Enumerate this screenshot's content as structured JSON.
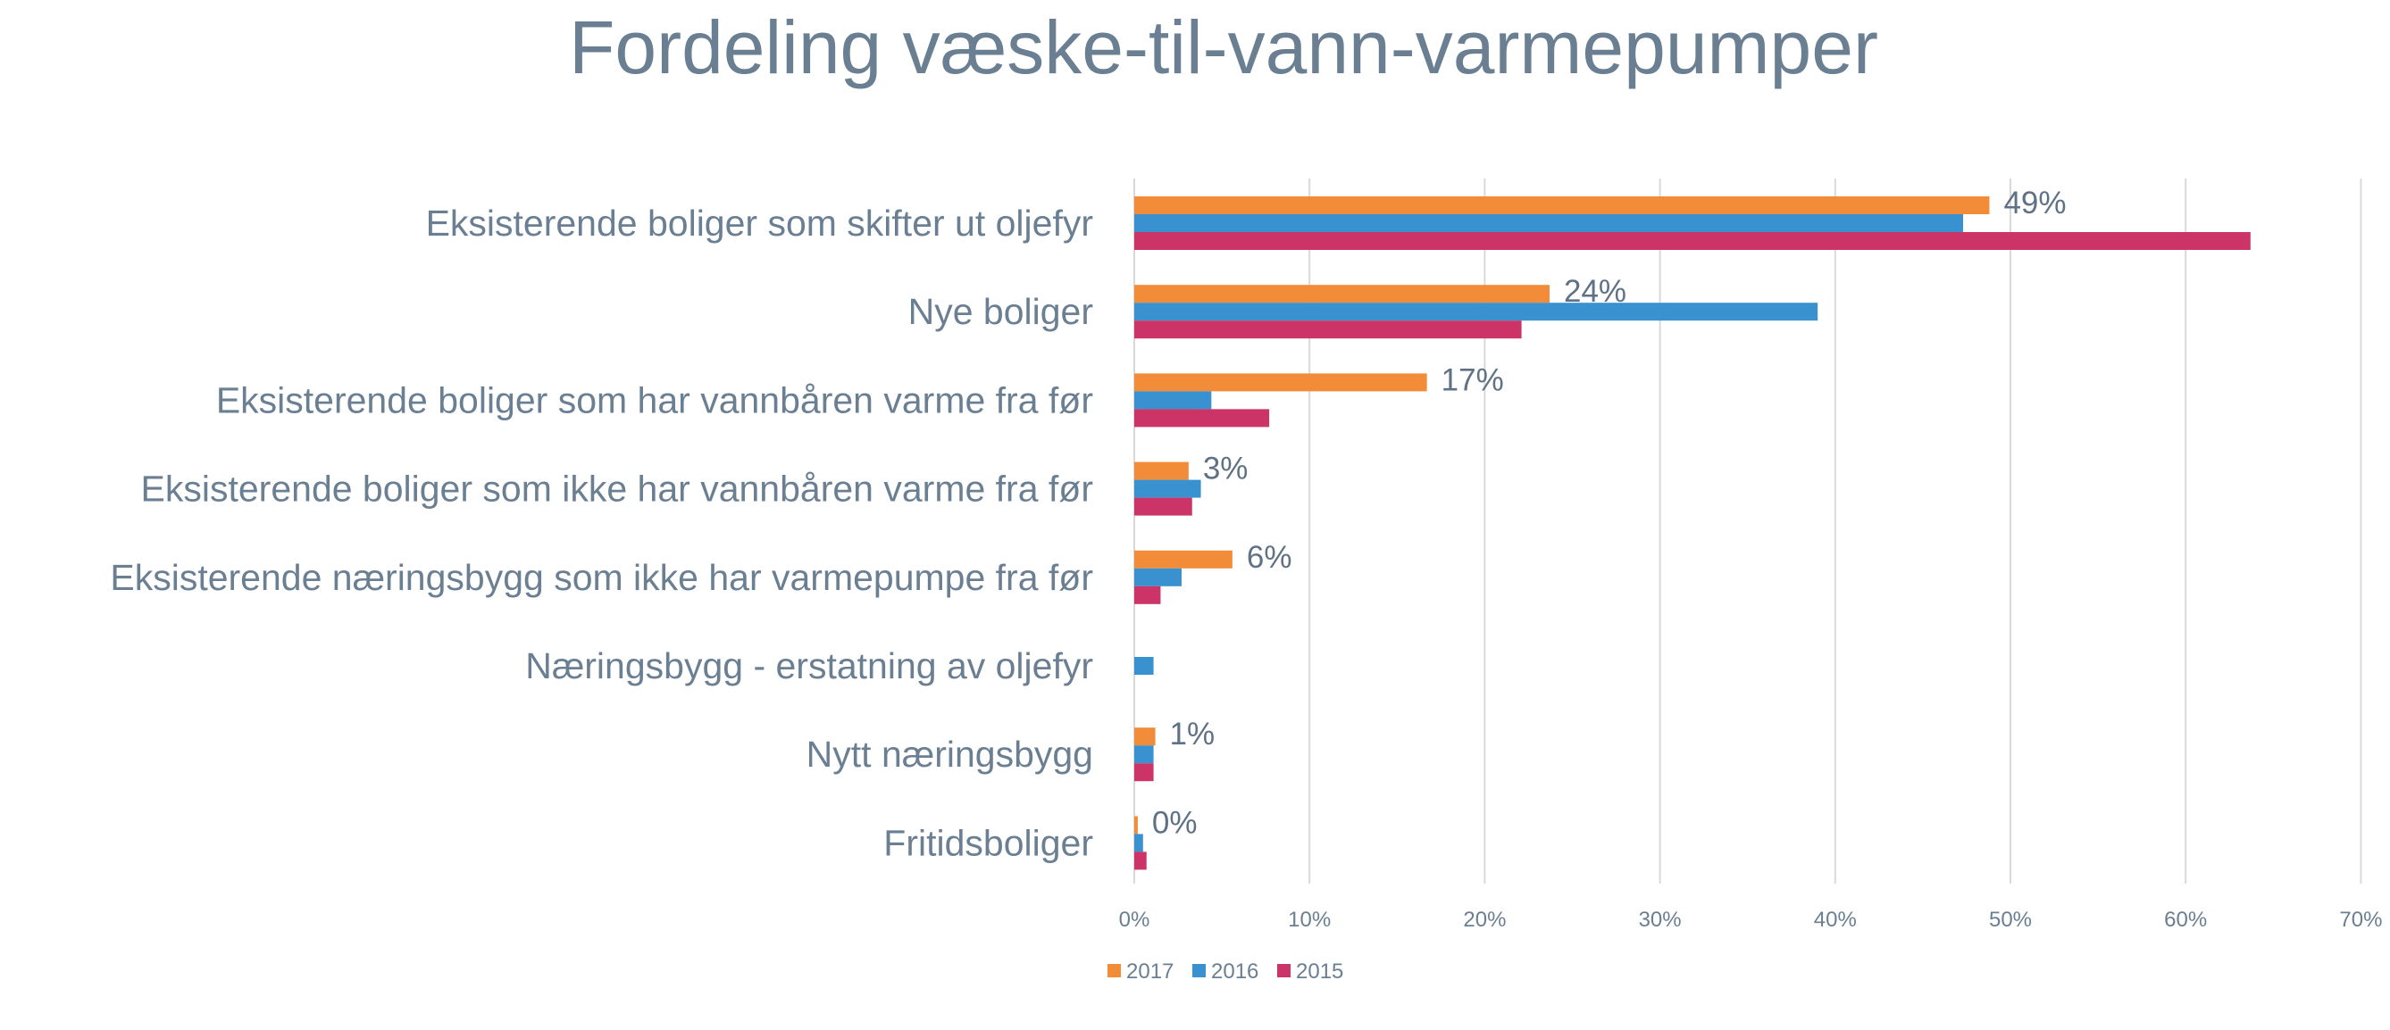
{
  "chart_data": {
    "type": "bar",
    "orientation": "horizontal",
    "title": "Fordeling væske-til-vann-varmepumper",
    "categories": [
      "Eksisterende boliger som skifter ut oljefyr",
      "Nye boliger",
      "Eksisterende boliger som har vannbåren varme fra før",
      "Eksisterende boliger som ikke har vannbåren varme fra før",
      "Eksisterende næringsbygg som ikke har varmepumpe fra før",
      "Næringsbygg - erstatning av oljefyr",
      "Nytt næringsbygg",
      "Fritidsboliger"
    ],
    "series": [
      {
        "name": "2017",
        "color": "#F28C38",
        "values": [
          48.8,
          23.7,
          16.7,
          3.1,
          5.6,
          0.0,
          1.2,
          0.2
        ],
        "data_labels": [
          "49%",
          "24%",
          "17%",
          "3%",
          "6%",
          "",
          "1%",
          "0%"
        ]
      },
      {
        "name": "2016",
        "color": "#3A91D0",
        "values": [
          47.3,
          39.0,
          4.4,
          3.8,
          2.7,
          1.1,
          1.1,
          0.5
        ],
        "data_labels": []
      },
      {
        "name": "2015",
        "color": "#CC3366",
        "values": [
          63.7,
          22.1,
          7.7,
          3.3,
          1.5,
          0.0,
          1.1,
          0.7
        ],
        "data_labels": []
      }
    ],
    "xlim": [
      0,
      70
    ],
    "x_ticks": [
      "0%",
      "10%",
      "20%",
      "30%",
      "40%",
      "50%",
      "60%",
      "70%"
    ],
    "xlabel": "",
    "ylabel": "",
    "grid": "vertical",
    "legend_position": "bottom-center",
    "colors": {
      "text": "#6B7F93",
      "grid": "#D9D9D9",
      "title": "#6B7F93"
    }
  }
}
